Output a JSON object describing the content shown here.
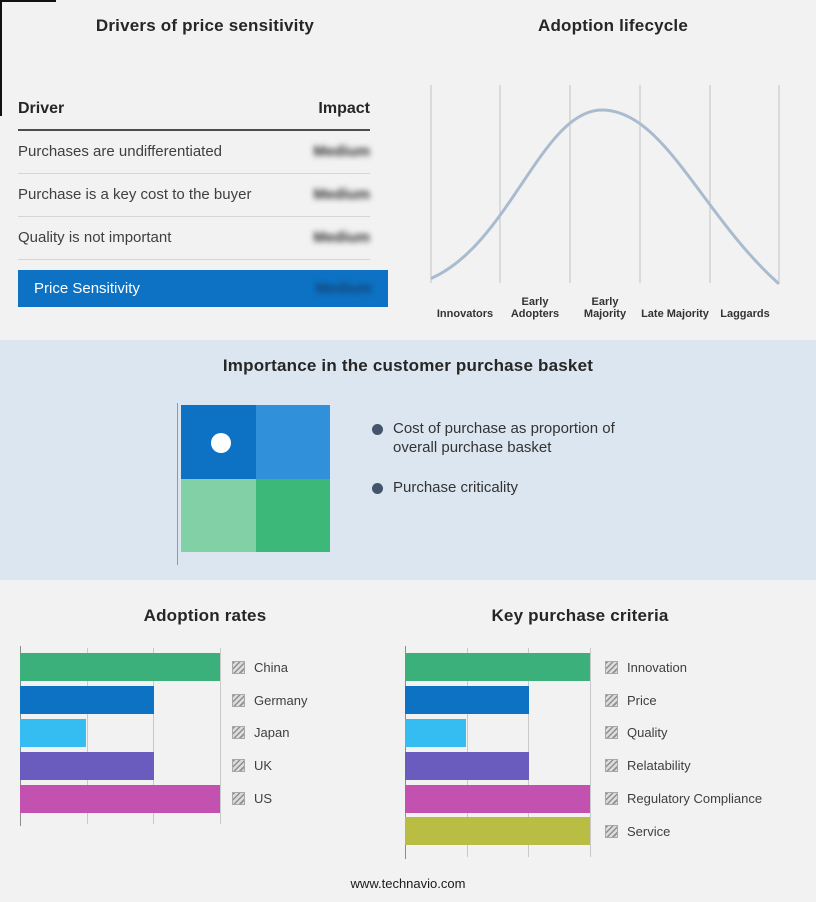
{
  "footer": {
    "url": "www.technavio.com"
  },
  "basket": {
    "title": "Importance in the customer purchase basket",
    "bullets": [
      "Cost of purchase as proportion of overall purchase basket",
      "Purchase criticality"
    ],
    "quadrant_colors": [
      "#0d72c4",
      "#3090da",
      "#82d0a6",
      "#3cb878"
    ]
  },
  "chart_data": [
    {
      "type": "table",
      "title": "Drivers of price sensitivity",
      "columns": [
        "Driver",
        "Impact"
      ],
      "rows": [
        [
          "Purchases are undifferentiated",
          "Medium"
        ],
        [
          "Purchase is a key cost to the buyer",
          "Medium"
        ],
        [
          "Quality is not important",
          "Medium"
        ]
      ],
      "highlight_row": [
        "Price Sensitivity",
        "Medium"
      ],
      "highlight_color": "#0d72c4",
      "note": "Impact values shown blurred/obscured in source image"
    },
    {
      "type": "line",
      "subtype": "bell-curve",
      "title": "Adoption lifecycle",
      "categories": [
        "Innovators",
        "Early Adopters",
        "Early Majority",
        "Late Majority",
        "Laggards"
      ],
      "description": "Bell curve rising from Innovators, peaking at Early Majority, falling to Laggards",
      "line_color": "#a9bccf",
      "grid": true
    },
    {
      "type": "bar",
      "orientation": "horizontal",
      "title": "Adoption rates",
      "categories": [
        "China",
        "Germany",
        "Japan",
        "UK",
        "US"
      ],
      "values": [
        100,
        67,
        33,
        67,
        100
      ],
      "colors": [
        "#3bb07b",
        "#0d72c4",
        "#35bdf2",
        "#6a5bbf",
        "#c251af"
      ],
      "xlim": [
        0,
        100
      ],
      "grid": true,
      "legend_position": "right"
    },
    {
      "type": "bar",
      "orientation": "horizontal",
      "title": "Key purchase criteria",
      "categories": [
        "Innovation",
        "Price",
        "Quality",
        "Relatability",
        "Regulatory Compliance",
        "Service"
      ],
      "values": [
        100,
        67,
        33,
        67,
        100,
        100
      ],
      "colors": [
        "#3bb07b",
        "#0d72c4",
        "#35bdf2",
        "#6a5bbf",
        "#c251af",
        "#babd43"
      ],
      "xlim": [
        0,
        100
      ],
      "grid": true,
      "legend_position": "right"
    }
  ]
}
